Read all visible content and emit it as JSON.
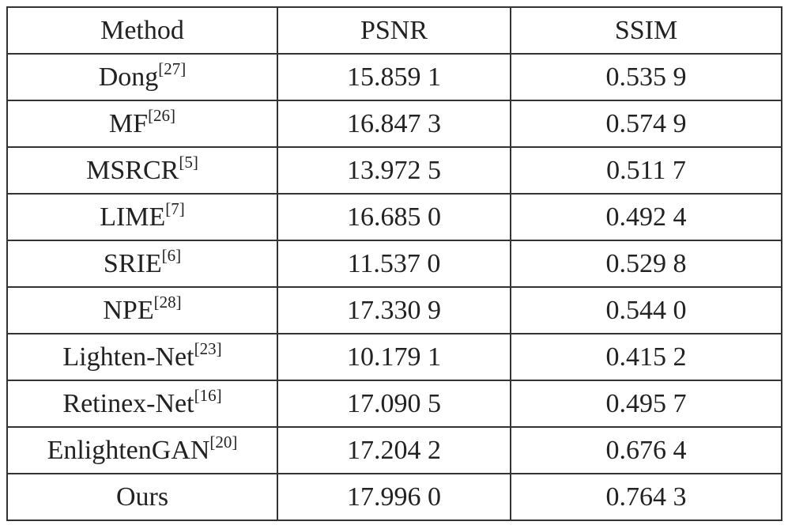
{
  "table": {
    "header": [
      "Method",
      "PSNR",
      "SSIM"
    ],
    "rows": [
      {
        "method": "Dong",
        "ref": "[27]",
        "psnr": "15.859 1",
        "ssim": "0.535 9"
      },
      {
        "method": "MF",
        "ref": "[26]",
        "psnr": "16.847 3",
        "ssim": "0.574 9"
      },
      {
        "method": "MSRCR",
        "ref": "[5]",
        "psnr": "13.972 5",
        "ssim": "0.511 7"
      },
      {
        "method": "LIME",
        "ref": "[7]",
        "psnr": "16.685 0",
        "ssim": "0.492 4"
      },
      {
        "method": "SRIE",
        "ref": "[6]",
        "psnr": "11.537 0",
        "ssim": "0.529 8"
      },
      {
        "method": "NPE",
        "ref": "[28]",
        "psnr": "17.330 9",
        "ssim": "0.544 0"
      },
      {
        "method": "Lighten-Net",
        "ref": "[23]",
        "psnr": "10.179 1",
        "ssim": "0.415 2"
      },
      {
        "method": "Retinex-Net",
        "ref": "[16]",
        "psnr": "17.090 5",
        "ssim": "0.495 7"
      },
      {
        "method": "EnlightenGAN",
        "ref": "[20]",
        "psnr": "17.204 2",
        "ssim": "0.676 4"
      },
      {
        "method": "Ours",
        "psnr": "17.996 0",
        "ssim": "0.764 3"
      }
    ]
  }
}
